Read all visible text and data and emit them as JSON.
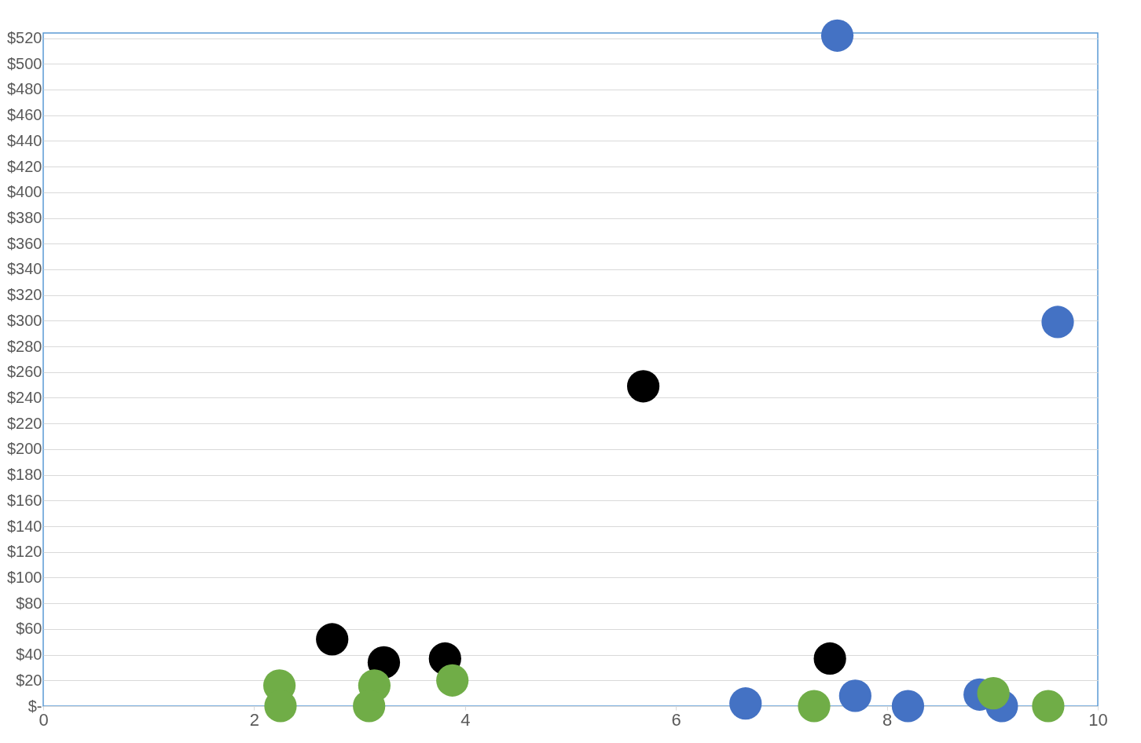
{
  "chart_data": {
    "type": "scatter",
    "marker": "circle",
    "grid": "y",
    "xlim": [
      0,
      10
    ],
    "xticks": [
      0,
      2,
      4,
      6,
      8,
      10
    ],
    "ylim": [
      0,
      524
    ],
    "yticks": [
      {
        "value": 0,
        "label": "$-"
      },
      {
        "value": 20,
        "label": "$20"
      },
      {
        "value": 40,
        "label": "$40"
      },
      {
        "value": 60,
        "label": "$60"
      },
      {
        "value": 80,
        "label": "$80"
      },
      {
        "value": 100,
        "label": "$100"
      },
      {
        "value": 120,
        "label": "$120"
      },
      {
        "value": 140,
        "label": "$140"
      },
      {
        "value": 160,
        "label": "$160"
      },
      {
        "value": 180,
        "label": "$180"
      },
      {
        "value": 200,
        "label": "$200"
      },
      {
        "value": 220,
        "label": "$220"
      },
      {
        "value": 240,
        "label": "$240"
      },
      {
        "value": 260,
        "label": "$260"
      },
      {
        "value": 280,
        "label": "$280"
      },
      {
        "value": 300,
        "label": "$300"
      },
      {
        "value": 320,
        "label": "$320"
      },
      {
        "value": 340,
        "label": "$340"
      },
      {
        "value": 360,
        "label": "$360"
      },
      {
        "value": 380,
        "label": "$380"
      },
      {
        "value": 400,
        "label": "$400"
      },
      {
        "value": 420,
        "label": "$420"
      },
      {
        "value": 440,
        "label": "$440"
      },
      {
        "value": 460,
        "label": "$460"
      },
      {
        "value": 480,
        "label": "$480"
      },
      {
        "value": 500,
        "label": "$500"
      },
      {
        "value": 520,
        "label": "$520"
      }
    ],
    "series": [
      {
        "color": "#4472c4",
        "x": [
          7.53,
          9.62,
          6.66,
          7.7,
          8.2,
          8.88,
          9.09
        ],
        "values": [
          522,
          299,
          2,
          8,
          0,
          9,
          0
        ]
      },
      {
        "color": "#000000",
        "x": [
          2.74,
          3.23,
          3.81,
          5.69,
          7.46
        ],
        "values": [
          52,
          34,
          37,
          249,
          37
        ]
      },
      {
        "color": "#70ad47",
        "x": [
          2.24,
          2.25,
          3.14,
          3.09,
          3.88,
          7.31,
          9.01,
          9.53
        ],
        "values": [
          16,
          0,
          16,
          0,
          20,
          0,
          10,
          0
        ]
      }
    ]
  }
}
